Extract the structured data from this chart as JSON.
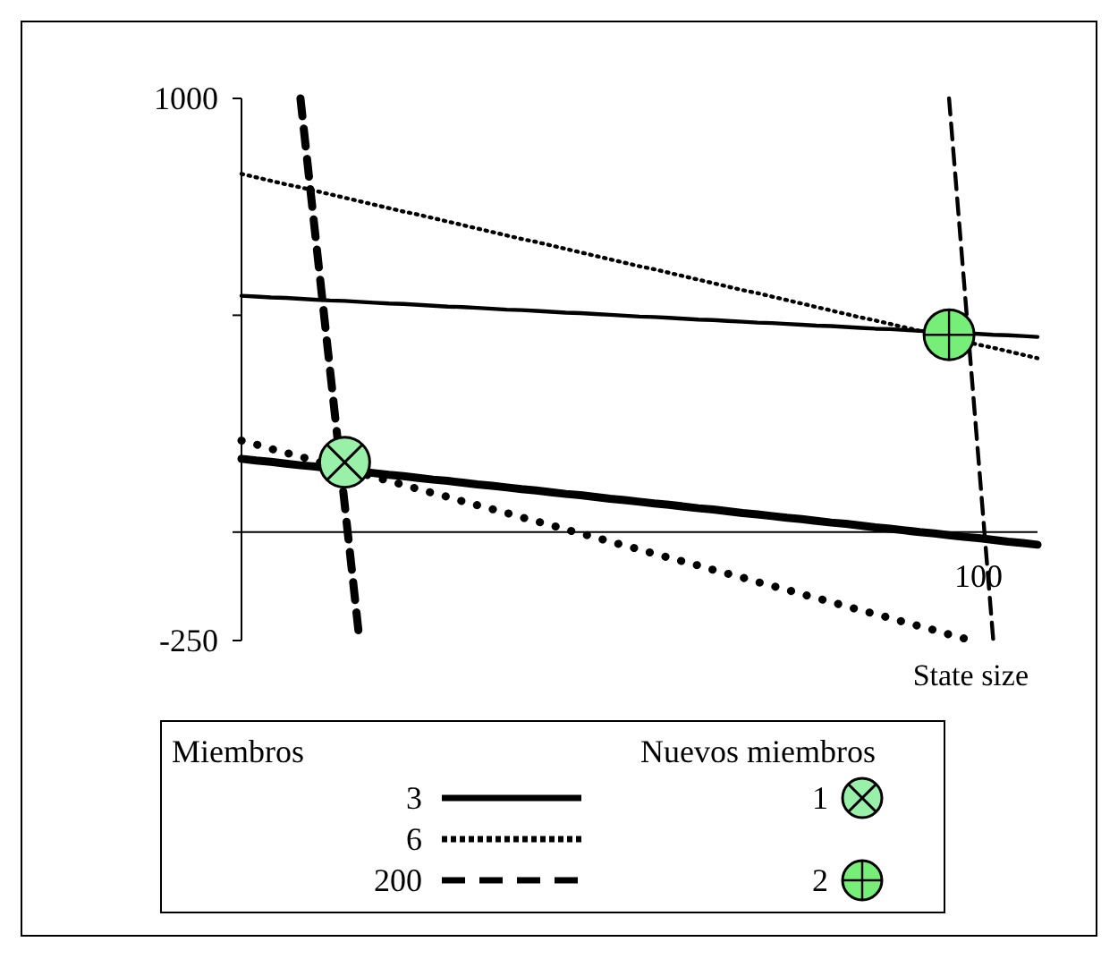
{
  "chart_data": {
    "type": "line",
    "xlabel": "State size",
    "legend_title": "Miembros",
    "annotations": [
      "Nuevos miembros"
    ],
    "categories": [
      null,
      null,
      null,
      null,
      null,
      null,
      null,
      null,
      null,
      null,
      null,
      null,
      null,
      null,
      null,
      null,
      null,
      null,
      null,
      null,
      null,
      null,
      null,
      null,
      null,
      null,
      null,
      null,
      null,
      null,
      null,
      null,
      null,
      null,
      null,
      null,
      null,
      null,
      null,
      null,
      null,
      null,
      null,
      null,
      null,
      null,
      null,
      null,
      null,
      null,
      "100",
      null,
      null,
      null,
      null
    ],
    "ylim": [
      -250,
      1000
    ],
    "yticks": [
      -250,
      {
        "value": 0,
        "label": null
      },
      {
        "value": 500,
        "label": null
      },
      1000
    ],
    "legend": "bottom",
    "series": [
      {
        "name": "3",
        "color": "#000000",
        "line_style": "solid",
        "values": [
          545,
          543,
          541,
          540,
          538,
          536,
          534,
          533,
          531,
          529,
          527,
          526,
          524,
          522,
          520,
          519,
          517,
          515,
          513,
          512,
          510,
          508,
          506,
          505,
          503,
          501,
          499,
          497,
          496,
          494,
          492,
          490,
          489,
          487,
          485,
          483,
          482,
          480,
          478,
          476,
          475,
          473,
          471,
          469,
          468,
          466,
          464,
          462,
          461,
          459,
          457,
          455,
          454,
          452,
          450
        ]
      },
      {
        "name": "6",
        "color": "#000000",
        "line_style": "dotted",
        "values": [
          826,
          818,
          810,
          802,
          795,
          787,
          779,
          771,
          763,
          755,
          747,
          739,
          732,
          724,
          716,
          708,
          700,
          692,
          684,
          676,
          669,
          661,
          653,
          645,
          637,
          629,
          621,
          613,
          606,
          598,
          590,
          582,
          574,
          566,
          558,
          551,
          543,
          535,
          527,
          519,
          511,
          503,
          495,
          488,
          480,
          472,
          464,
          456,
          448,
          440,
          432,
          425,
          417,
          409,
          401
        ]
      },
      {
        "name": "200",
        "color": "#000000",
        "line_style": "dashed",
        "values": [
          null,
          null,
          null,
          null,
          null,
          null,
          null,
          null,
          null,
          null,
          null,
          null,
          null,
          null,
          null,
          null,
          null,
          null,
          null,
          null,
          null,
          null,
          null,
          null,
          null,
          null,
          null,
          null,
          null,
          null,
          null,
          null,
          null,
          null,
          null,
          null,
          null,
          null,
          null,
          null,
          null,
          null,
          null,
          null,
          null,
          null,
          null,
          null,
          1000,
          583,
          167,
          -250,
          null,
          null,
          null
        ]
      },
      {
        "color": "#000000",
        "line_style": "solid",
        "values": [
          169,
          165,
          162,
          158,
          154,
          151,
          147,
          143,
          140,
          136,
          132,
          129,
          125,
          121,
          118,
          114,
          110,
          107,
          103,
          99,
          96,
          92,
          88,
          85,
          81,
          77,
          74,
          70,
          66,
          63,
          59,
          55,
          52,
          48,
          44,
          41,
          37,
          33,
          30,
          26,
          22,
          19,
          15,
          11,
          8,
          4,
          0,
          -3,
          -7,
          -11,
          -14,
          -18,
          -22,
          -25,
          -29
        ]
      },
      {
        "color": "#000000",
        "line_style": "dotted",
        "values": [
          211,
          202,
          192,
          183,
          174,
          164,
          155,
          146,
          137,
          127,
          118,
          109,
          99,
          90,
          81,
          71,
          62,
          53,
          44,
          34,
          25,
          16,
          6,
          -3,
          -12,
          -22,
          -31,
          -40,
          -50,
          -59,
          -68,
          -77,
          -87,
          -96,
          -105,
          -115,
          -124,
          -133,
          -143,
          -152,
          -161,
          -171,
          -180,
          -189,
          -198,
          -208,
          -217,
          -226,
          -236,
          -245,
          null,
          null,
          null,
          null,
          null
        ]
      },
      {
        "color": "#000000",
        "line_style": "dashed",
        "values": [
          null,
          null,
          null,
          null,
          1000,
          688,
          376,
          64,
          -248,
          null,
          null,
          null,
          null,
          null,
          null,
          null,
          null,
          null,
          null,
          null,
          null,
          null,
          null,
          null,
          null,
          null,
          null,
          null,
          null,
          null,
          null,
          null,
          null,
          null,
          null,
          null,
          null,
          null,
          null,
          null,
          null,
          null,
          null,
          null,
          null,
          null,
          null,
          null,
          null,
          null,
          null,
          null,
          null,
          null,
          null
        ]
      },
      {
        "name": "1",
        "type": "scatter",
        "marker": "circle",
        "color": "#99f0a8",
        "values": [
          null,
          null,
          null,
          null,
          null,
          null,
          null,
          161,
          null,
          null,
          null,
          null,
          null,
          null,
          null,
          null,
          null,
          null,
          null,
          null,
          null,
          null,
          null,
          null,
          null,
          null,
          null,
          null,
          null,
          null,
          null,
          null,
          null,
          null,
          null,
          null,
          null,
          null,
          null,
          null,
          null,
          null,
          null,
          null,
          null,
          null,
          null,
          null,
          null,
          null,
          null,
          null,
          null,
          null,
          null
        ]
      },
      {
        "name": "2",
        "type": "scatter",
        "marker": "circle",
        "color": "#77ee77",
        "values": [
          null,
          null,
          null,
          null,
          null,
          null,
          null,
          null,
          null,
          null,
          null,
          null,
          null,
          null,
          null,
          null,
          null,
          null,
          null,
          null,
          null,
          null,
          null,
          null,
          null,
          null,
          null,
          null,
          null,
          null,
          null,
          null,
          null,
          null,
          null,
          null,
          null,
          null,
          null,
          null,
          null,
          null,
          null,
          null,
          null,
          null,
          null,
          null,
          455,
          null,
          null,
          null,
          null,
          null,
          null
        ]
      }
    ]
  }
}
